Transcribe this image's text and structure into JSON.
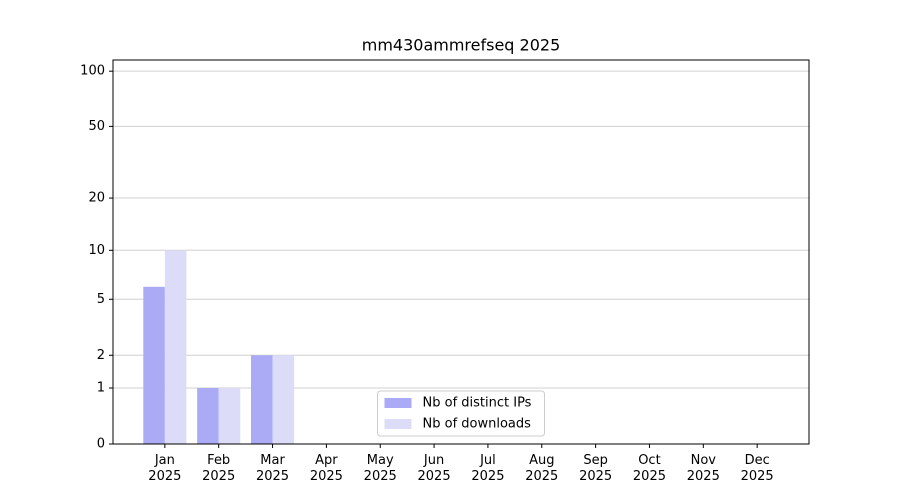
{
  "chart_data": {
    "type": "bar",
    "title": "mm430ammrefseq 2025",
    "categories": [
      "Jan\n2025",
      "Feb\n2025",
      "Mar\n2025",
      "Apr\n2025",
      "May\n2025",
      "Jun\n2025",
      "Jul\n2025",
      "Aug\n2025",
      "Sep\n2025",
      "Oct\n2025",
      "Nov\n2025",
      "Dec\n2025"
    ],
    "series": [
      {
        "name": "Nb of distinct IPs",
        "color": "#aaaaf5",
        "values": [
          6,
          1,
          2,
          0,
          0,
          0,
          0,
          0,
          0,
          0,
          0,
          0
        ]
      },
      {
        "name": "Nb of downloads",
        "color": "#dcdcf9",
        "values": [
          10,
          1,
          2,
          0,
          0,
          0,
          0,
          0,
          0,
          0,
          0,
          0
        ]
      }
    ],
    "yscale": "log1p",
    "ylim": [
      0,
      115
    ],
    "yticks": [
      0,
      1,
      2,
      5,
      10,
      20,
      50,
      100
    ],
    "grid": true,
    "legend": "lower center"
  }
}
